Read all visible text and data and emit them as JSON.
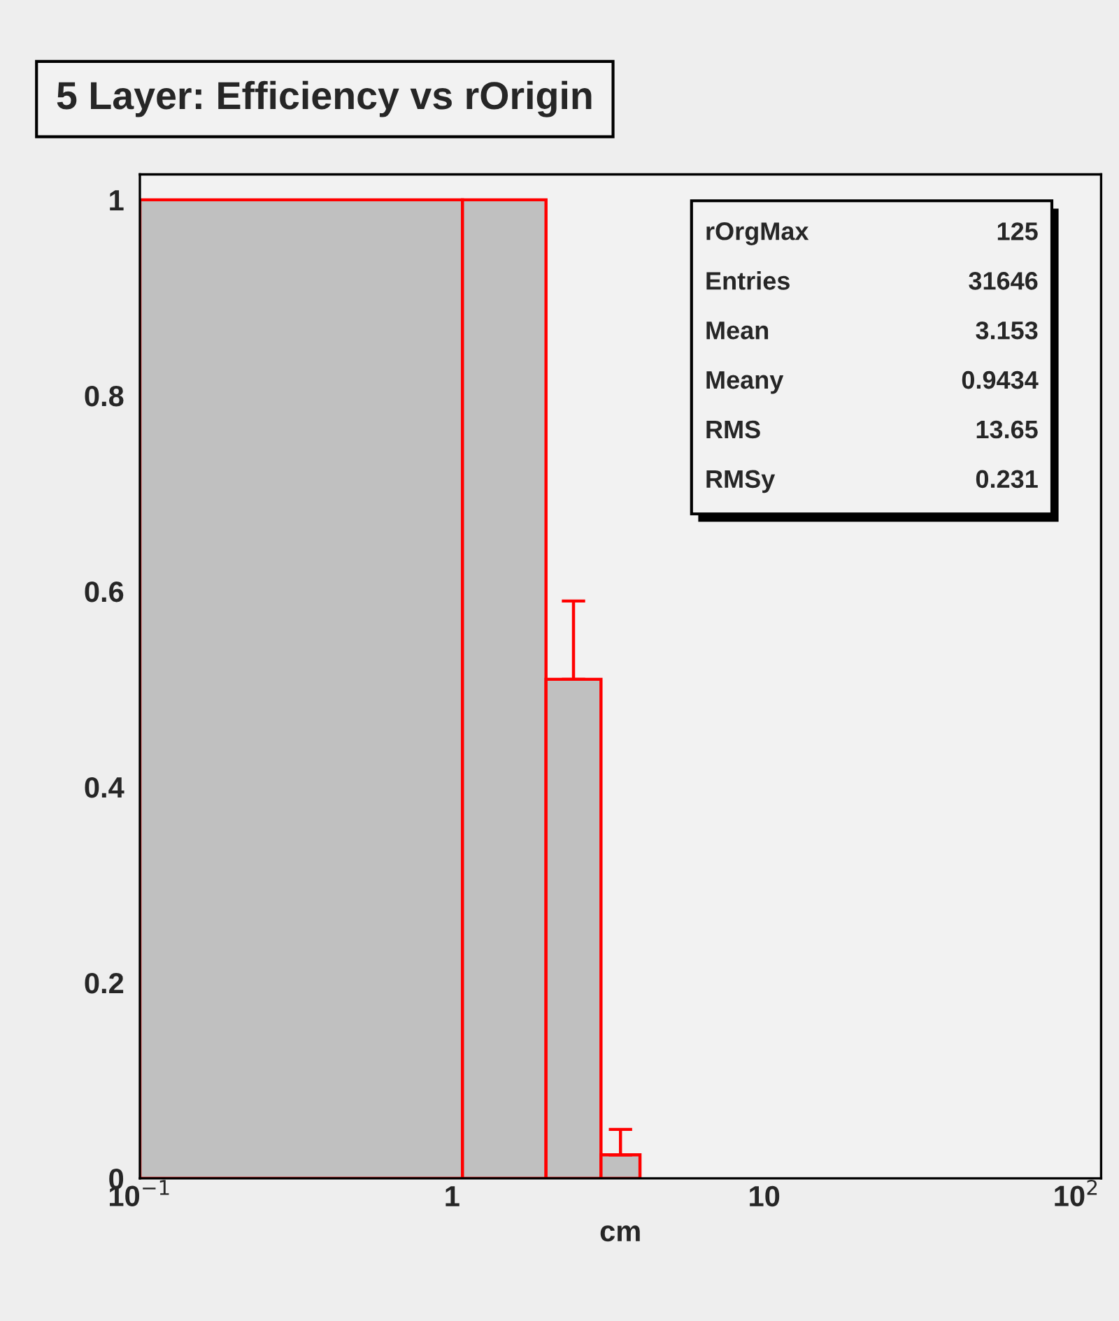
{
  "chart_data": {
    "type": "histogram",
    "title": "5 Layer: Efficiency vs rOrigin",
    "xlabel": "cm",
    "bins": [
      0.1,
      1.08,
      2,
      3,
      4
    ],
    "values": [
      1.0,
      1.0,
      0.51,
      0.024
    ],
    "errors": [
      null,
      null,
      [
        0.51,
        0.59
      ],
      [
        0.024,
        0.05
      ]
    ],
    "color": "#c0c0c0",
    "log": "x",
    "xlim": [
      0.1,
      120
    ],
    "ylim": [
      0,
      1.026
    ],
    "xticks": [
      {
        "value": 0.1,
        "label": "10$^{−1}$"
      },
      1,
      10,
      {
        "value": 100,
        "label": "10$^{2}$"
      }
    ],
    "yticks": [
      0,
      0.2,
      0.4,
      0.6,
      0.8,
      1
    ],
    "annotations": [
      "rOrgMax",
      "125",
      "Entries",
      "31646",
      "Mean",
      "3.153",
      "Meany",
      "0.9434",
      "RMS",
      "13.65",
      "RMSy",
      "0.231"
    ],
    "grid": false,
    "legend": false
  }
}
